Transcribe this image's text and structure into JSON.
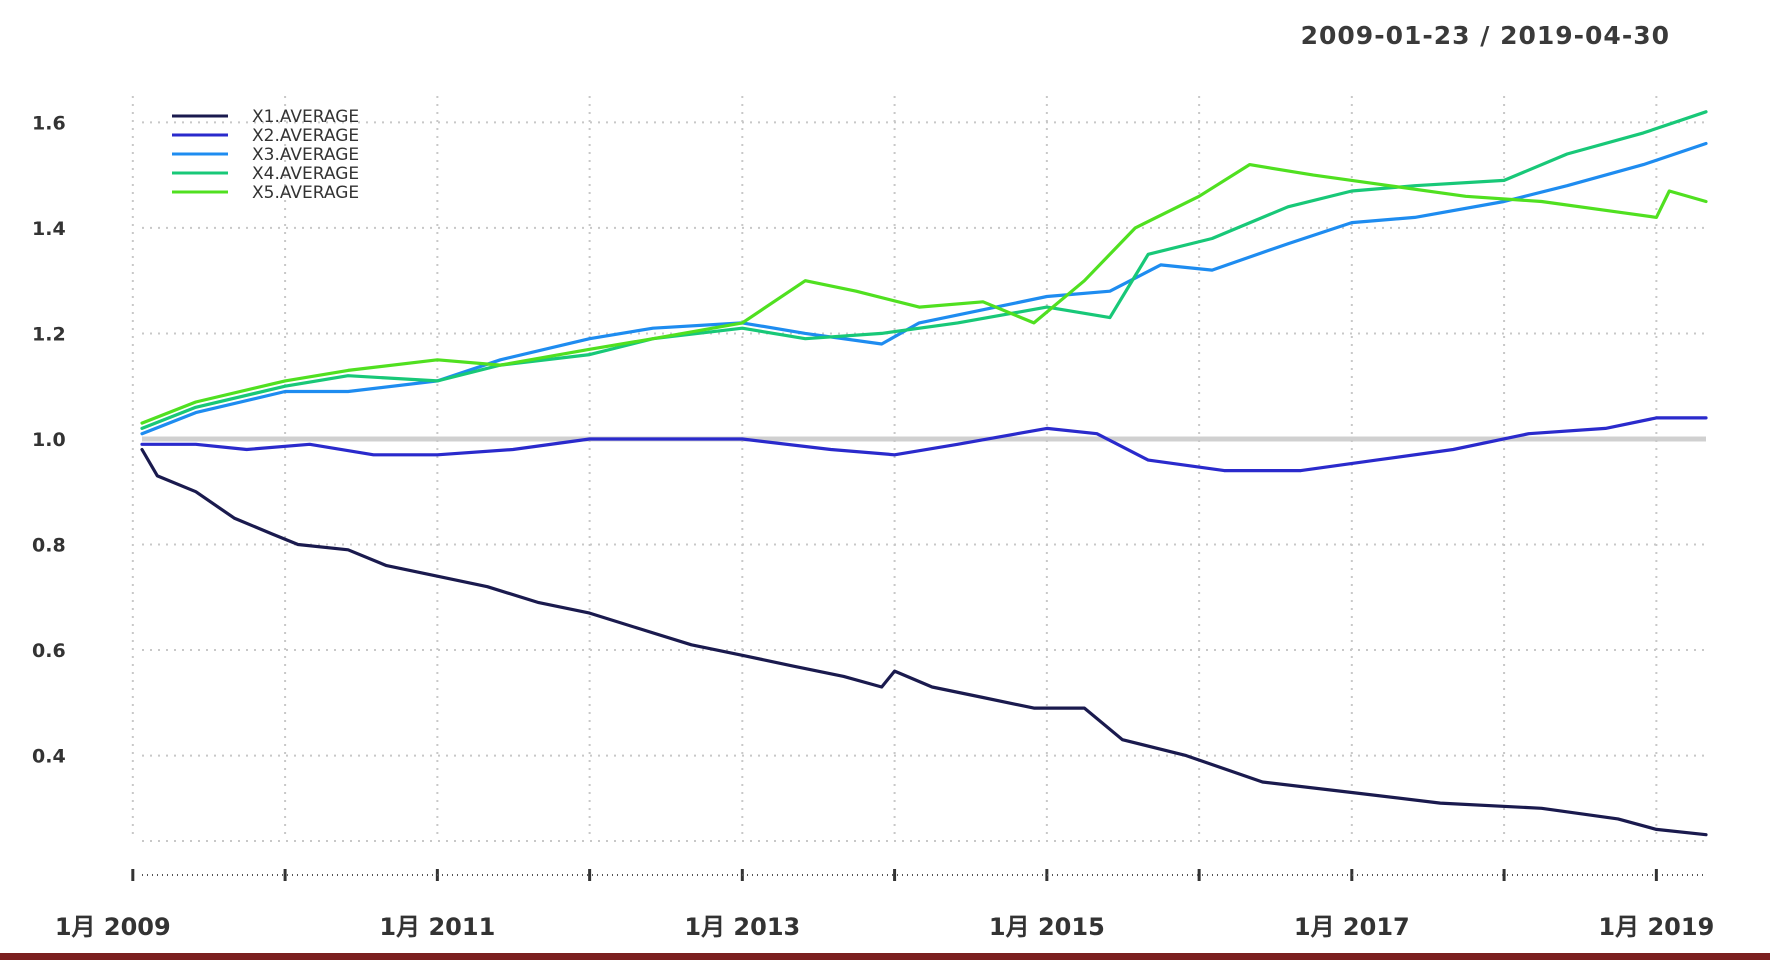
{
  "chart_data": {
    "type": "line",
    "title": "2009-01-23 / 2019-04-30",
    "xlabel": "",
    "ylabel": "",
    "ylim": [
      0.24,
      1.65
    ],
    "yticks": [
      0.4,
      0.6,
      0.8,
      1.0,
      1.2,
      1.4,
      1.6
    ],
    "ytick_labels": [
      "0.4",
      "0.6",
      "0.8",
      "1.0",
      "1.2",
      "1.4",
      "1.6"
    ],
    "xlim": [
      "2009-01-23",
      "2019-04-30"
    ],
    "xticks": [
      "2009-01-01",
      "2010-01-01",
      "2011-01-01",
      "2012-01-01",
      "2013-01-01",
      "2014-01-01",
      "2015-01-01",
      "2016-01-01",
      "2017-01-01",
      "2018-01-01",
      "2019-01-01"
    ],
    "xtick_labels": [
      "1月 2009",
      "1月 2011",
      "1月 2013",
      "1月 2015",
      "1月 2017",
      "1月 2019"
    ],
    "xtick_label_dates": [
      "2009-01-01",
      "2011-01-01",
      "2013-01-01",
      "2015-01-01",
      "2017-01-01",
      "2019-01-01"
    ],
    "grid": true,
    "legend": "top-left",
    "reference_line": 1.0,
    "series": [
      {
        "name": "X1.AVERAGE",
        "color": "#1a1a4e",
        "points": [
          [
            "2009-01-23",
            0.98
          ],
          [
            "2009-03-01",
            0.93
          ],
          [
            "2009-06-01",
            0.9
          ],
          [
            "2009-09-01",
            0.85
          ],
          [
            "2009-12-01",
            0.82
          ],
          [
            "2010-02-01",
            0.8
          ],
          [
            "2010-06-01",
            0.79
          ],
          [
            "2010-09-01",
            0.76
          ],
          [
            "2011-01-01",
            0.74
          ],
          [
            "2011-05-01",
            0.72
          ],
          [
            "2011-09-01",
            0.69
          ],
          [
            "2012-01-01",
            0.67
          ],
          [
            "2012-05-01",
            0.64
          ],
          [
            "2012-09-01",
            0.61
          ],
          [
            "2013-01-01",
            0.59
          ],
          [
            "2013-05-01",
            0.57
          ],
          [
            "2013-09-01",
            0.55
          ],
          [
            "2013-12-01",
            0.53
          ],
          [
            "2014-01-01",
            0.56
          ],
          [
            "2014-04-01",
            0.53
          ],
          [
            "2014-08-01",
            0.51
          ],
          [
            "2014-12-01",
            0.49
          ],
          [
            "2015-04-01",
            0.49
          ],
          [
            "2015-07-01",
            0.43
          ],
          [
            "2015-12-01",
            0.4
          ],
          [
            "2016-06-01",
            0.35
          ],
          [
            "2017-01-01",
            0.33
          ],
          [
            "2017-08-01",
            0.31
          ],
          [
            "2018-04-01",
            0.3
          ],
          [
            "2018-10-01",
            0.28
          ],
          [
            "2019-01-01",
            0.26
          ],
          [
            "2019-04-30",
            0.25
          ]
        ]
      },
      {
        "name": "X2.AVERAGE",
        "color": "#2a2acc",
        "points": [
          [
            "2009-01-23",
            0.99
          ],
          [
            "2009-06-01",
            0.99
          ],
          [
            "2009-10-01",
            0.98
          ],
          [
            "2010-03-01",
            0.99
          ],
          [
            "2010-08-01",
            0.97
          ],
          [
            "2011-01-01",
            0.97
          ],
          [
            "2011-07-01",
            0.98
          ],
          [
            "2012-01-01",
            1.0
          ],
          [
            "2012-06-01",
            1.0
          ],
          [
            "2013-01-01",
            1.0
          ],
          [
            "2013-08-01",
            0.98
          ],
          [
            "2014-01-01",
            0.97
          ],
          [
            "2014-06-01",
            0.99
          ],
          [
            "2015-01-01",
            1.02
          ],
          [
            "2015-05-01",
            1.01
          ],
          [
            "2015-09-01",
            0.96
          ],
          [
            "2016-03-01",
            0.94
          ],
          [
            "2016-09-01",
            0.94
          ],
          [
            "2017-03-01",
            0.96
          ],
          [
            "2017-09-01",
            0.98
          ],
          [
            "2018-03-01",
            1.01
          ],
          [
            "2018-09-01",
            1.02
          ],
          [
            "2019-01-01",
            1.04
          ],
          [
            "2019-04-30",
            1.04
          ]
        ]
      },
      {
        "name": "X3.AVERAGE",
        "color": "#1e8cf0",
        "points": [
          [
            "2009-01-23",
            1.01
          ],
          [
            "2009-06-01",
            1.05
          ],
          [
            "2010-01-01",
            1.09
          ],
          [
            "2010-06-01",
            1.09
          ],
          [
            "2011-01-01",
            1.11
          ],
          [
            "2011-06-01",
            1.15
          ],
          [
            "2012-01-01",
            1.19
          ],
          [
            "2012-06-01",
            1.21
          ],
          [
            "2013-01-01",
            1.22
          ],
          [
            "2013-06-01",
            1.2
          ],
          [
            "2013-12-01",
            1.18
          ],
          [
            "2014-03-01",
            1.22
          ],
          [
            "2014-09-01",
            1.25
          ],
          [
            "2015-01-01",
            1.27
          ],
          [
            "2015-06-01",
            1.28
          ],
          [
            "2015-10-01",
            1.33
          ],
          [
            "2016-02-01",
            1.32
          ],
          [
            "2016-08-01",
            1.37
          ],
          [
            "2017-01-01",
            1.41
          ],
          [
            "2017-06-01",
            1.42
          ],
          [
            "2018-01-01",
            1.45
          ],
          [
            "2018-06-01",
            1.48
          ],
          [
            "2018-12-01",
            1.52
          ],
          [
            "2019-04-30",
            1.56
          ]
        ]
      },
      {
        "name": "X4.AVERAGE",
        "color": "#18c878",
        "points": [
          [
            "2009-01-23",
            1.02
          ],
          [
            "2009-06-01",
            1.06
          ],
          [
            "2010-01-01",
            1.1
          ],
          [
            "2010-06-01",
            1.12
          ],
          [
            "2011-01-01",
            1.11
          ],
          [
            "2011-06-01",
            1.14
          ],
          [
            "2012-01-01",
            1.16
          ],
          [
            "2012-06-01",
            1.19
          ],
          [
            "2013-01-01",
            1.21
          ],
          [
            "2013-06-01",
            1.19
          ],
          [
            "2013-12-01",
            1.2
          ],
          [
            "2014-06-01",
            1.22
          ],
          [
            "2015-01-01",
            1.25
          ],
          [
            "2015-06-01",
            1.23
          ],
          [
            "2015-09-01",
            1.35
          ],
          [
            "2016-02-01",
            1.38
          ],
          [
            "2016-08-01",
            1.44
          ],
          [
            "2017-01-01",
            1.47
          ],
          [
            "2017-06-01",
            1.48
          ],
          [
            "2018-01-01",
            1.49
          ],
          [
            "2018-06-01",
            1.54
          ],
          [
            "2018-12-01",
            1.58
          ],
          [
            "2019-04-30",
            1.62
          ]
        ]
      },
      {
        "name": "X5.AVERAGE",
        "color": "#50e020",
        "points": [
          [
            "2009-01-23",
            1.03
          ],
          [
            "2009-06-01",
            1.07
          ],
          [
            "2010-01-01",
            1.11
          ],
          [
            "2010-06-01",
            1.13
          ],
          [
            "2011-01-01",
            1.15
          ],
          [
            "2011-06-01",
            1.14
          ],
          [
            "2012-01-01",
            1.17
          ],
          [
            "2012-06-01",
            1.19
          ],
          [
            "2013-01-01",
            1.22
          ],
          [
            "2013-06-01",
            1.3
          ],
          [
            "2013-10-01",
            1.28
          ],
          [
            "2014-03-01",
            1.25
          ],
          [
            "2014-08-01",
            1.26
          ],
          [
            "2014-12-01",
            1.22
          ],
          [
            "2015-04-01",
            1.3
          ],
          [
            "2015-08-01",
            1.4
          ],
          [
            "2016-01-01",
            1.46
          ],
          [
            "2016-05-01",
            1.52
          ],
          [
            "2016-10-01",
            1.5
          ],
          [
            "2017-04-01",
            1.48
          ],
          [
            "2017-10-01",
            1.46
          ],
          [
            "2018-04-01",
            1.45
          ],
          [
            "2018-10-01",
            1.43
          ],
          [
            "2019-01-01",
            1.42
          ],
          [
            "2019-02-01",
            1.47
          ],
          [
            "2019-04-30",
            1.45
          ]
        ]
      }
    ]
  }
}
